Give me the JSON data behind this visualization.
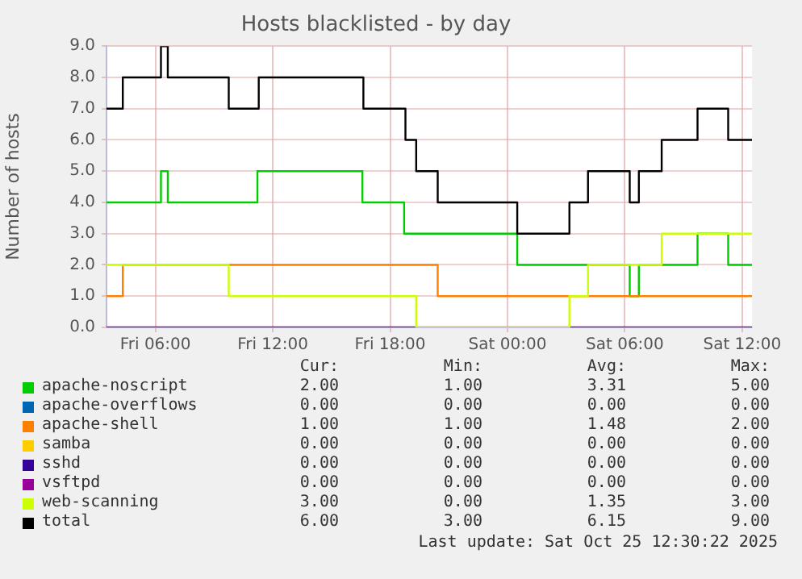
{
  "chart_data": {
    "type": "step",
    "title": "Hosts blacklisted - by day",
    "ylabel": "Number of hosts",
    "xlim": [
      "2025-10-24T03:30",
      "2025-10-25T12:30"
    ],
    "xticks": [
      {
        "value": "2025-10-24T06:00",
        "label": "Fri 06:00"
      },
      {
        "value": "2025-10-24T12:00",
        "label": "Fri 12:00"
      },
      {
        "value": "2025-10-24T18:00",
        "label": "Fri 18:00"
      },
      {
        "value": "2025-10-25T00:00",
        "label": "Sat 00:00"
      },
      {
        "value": "2025-10-25T06:00",
        "label": "Sat 06:00"
      },
      {
        "value": "2025-10-25T12:00",
        "label": "Sat 12:00"
      }
    ],
    "ylim": [
      0,
      9
    ],
    "yticks": [
      {
        "value": 0,
        "label": "0.0"
      },
      {
        "value": 1,
        "label": "1.0"
      },
      {
        "value": 2,
        "label": "2.0"
      },
      {
        "value": 3,
        "label": "3.0"
      },
      {
        "value": 4,
        "label": "4.0"
      },
      {
        "value": 5,
        "label": "5.0"
      },
      {
        "value": 6,
        "label": "6.0"
      },
      {
        "value": 7,
        "label": "7.0"
      },
      {
        "value": 8,
        "label": "8.0"
      },
      {
        "value": 9,
        "label": "9.0"
      }
    ],
    "grid": true,
    "legend": "bottom",
    "marker": "none",
    "line_style": "solid",
    "series": [
      {
        "name": "apache-noscript",
        "color": "#00cc00",
        "x": [
          "2025-10-24T03:30",
          "2025-10-24T06:17",
          "2025-10-24T06:38",
          "2025-10-24T11:13",
          "2025-10-24T16:35",
          "2025-10-24T18:43",
          "2025-10-25T00:30",
          "2025-10-25T06:15",
          "2025-10-25T06:43",
          "2025-10-25T09:43",
          "2025-10-25T11:17",
          "2025-10-25T12:30"
        ],
        "values": [
          4,
          5,
          4,
          5,
          4,
          3,
          2,
          1,
          2,
          3,
          2,
          2
        ]
      },
      {
        "name": "apache-overflows",
        "color": "#0066b3"
      },
      {
        "name": "apache-shell",
        "color": "#ff8000",
        "x": [
          "2025-10-24T03:30",
          "2025-10-24T04:20",
          "2025-10-24T20:26",
          "2025-10-25T12:30"
        ],
        "values": [
          1,
          2,
          1,
          1
        ]
      },
      {
        "name": "samba",
        "color": "#ffcc00"
      },
      {
        "name": "sshd",
        "color": "#330099"
      },
      {
        "name": "vsftpd",
        "color": "#990099",
        "x": [
          "2025-10-24T03:30",
          "2025-10-25T12:30"
        ],
        "values": [
          0,
          0
        ]
      },
      {
        "name": "web-scanning",
        "color": "#ccff00",
        "x": [
          "2025-10-24T03:30",
          "2025-10-24T09:45",
          "2025-10-24T19:20",
          "2025-10-25T03:10",
          "2025-10-25T04:07",
          "2025-10-25T07:53",
          "2025-10-25T12:30"
        ],
        "values": [
          2,
          1,
          0,
          1,
          2,
          3,
          3
        ]
      },
      {
        "name": "total",
        "color": "#000000",
        "x": [
          "2025-10-24T03:30",
          "2025-10-24T04:20",
          "2025-10-24T06:17",
          "2025-10-24T06:38",
          "2025-10-24T09:45",
          "2025-10-24T11:17",
          "2025-10-24T16:38",
          "2025-10-24T18:47",
          "2025-10-24T19:20",
          "2025-10-24T20:26",
          "2025-10-25T00:30",
          "2025-10-25T03:10",
          "2025-10-25T04:07",
          "2025-10-25T06:15",
          "2025-10-25T06:43",
          "2025-10-25T07:53",
          "2025-10-25T09:43",
          "2025-10-25T11:17",
          "2025-10-25T12:30"
        ],
        "values": [
          7,
          8,
          9,
          8,
          7,
          8,
          7,
          6,
          5,
          4,
          3,
          4,
          5,
          4,
          5,
          6,
          7,
          6,
          6
        ]
      }
    ],
    "annotations": [
      "Cur:",
      "Min:",
      "Avg:",
      "Max:",
      "2.00",
      "1.00",
      "3.31",
      "5.00",
      "0.00",
      "0.00",
      "0.00",
      "0.00",
      "1.00",
      "1.00",
      "1.48",
      "2.00",
      "0.00",
      "0.00",
      "0.00",
      "0.00",
      "0.00",
      "0.00",
      "0.00",
      "0.00",
      "0.00",
      "0.00",
      "0.00",
      "0.00",
      "3.00",
      "0.00",
      "1.35",
      "3.00",
      "6.00",
      "3.00",
      "6.15",
      "9.00",
      "Last update: Sat Oct 25 12:30:22 2025"
    ]
  }
}
